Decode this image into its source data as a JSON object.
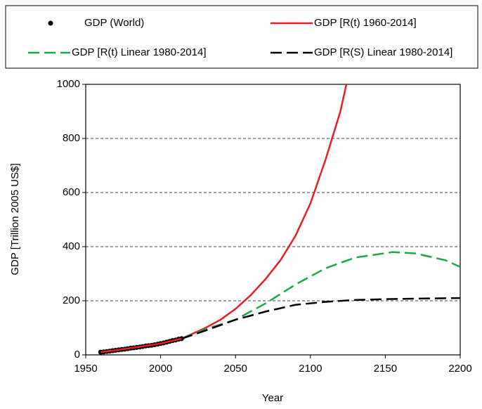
{
  "chart_data": {
    "type": "line",
    "xlabel": "Year",
    "ylabel": "GDP [Trillion 2005 US$]",
    "xlim": [
      1950,
      2200
    ],
    "ylim": [
      0,
      1000
    ],
    "xticks": [
      1950,
      2000,
      2050,
      2100,
      2150,
      2200
    ],
    "yticks": [
      0,
      200,
      400,
      600,
      800,
      1000
    ],
    "grid": true,
    "legend": "top",
    "series": [
      {
        "name": "GDP (World)",
        "color": "#000000",
        "kind": "scatter",
        "x": [
          1960,
          1962,
          1964,
          1966,
          1968,
          1970,
          1972,
          1974,
          1976,
          1978,
          1980,
          1982,
          1984,
          1986,
          1988,
          1990,
          1992,
          1994,
          1996,
          1998,
          2000,
          2002,
          2004,
          2006,
          2008,
          2010,
          2012,
          2014
        ],
        "values": [
          10,
          11,
          12.5,
          14,
          15.5,
          17,
          18.5,
          20,
          21,
          23,
          25,
          26,
          27.5,
          29,
          31,
          33,
          34,
          35.5,
          37.5,
          39.5,
          42,
          44,
          47,
          50,
          53,
          55,
          58,
          60
        ]
      },
      {
        "name": "GDP [R(t) 1960-2014]",
        "color": "#ee1c25",
        "kind": "line",
        "dashed": false,
        "x": [
          1960,
          1980,
          2000,
          2014,
          2030,
          2040,
          2050,
          2060,
          2070,
          2080,
          2090,
          2100,
          2110,
          2120,
          2124
        ],
        "values": [
          10,
          25,
          42,
          60,
          100,
          130,
          170,
          220,
          280,
          350,
          440,
          560,
          720,
          900,
          1000
        ]
      },
      {
        "name": "GDP [R(t) Linear 1980-2014]",
        "color": "#1aa84a",
        "kind": "line",
        "dashed": true,
        "x": [
          2014,
          2030,
          2050,
          2070,
          2090,
          2110,
          2130,
          2155,
          2170,
          2190,
          2200
        ],
        "values": [
          60,
          95,
          130,
          190,
          260,
          320,
          360,
          380,
          375,
          350,
          325
        ]
      },
      {
        "name": "GDP [R(S) Linear 1980-2014]",
        "color": "#000000",
        "kind": "line",
        "dashed": true,
        "x": [
          2014,
          2030,
          2050,
          2070,
          2090,
          2110,
          2130,
          2150,
          2170,
          2200
        ],
        "values": [
          60,
          90,
          130,
          160,
          185,
          196,
          203,
          206,
          208,
          210
        ]
      }
    ]
  }
}
